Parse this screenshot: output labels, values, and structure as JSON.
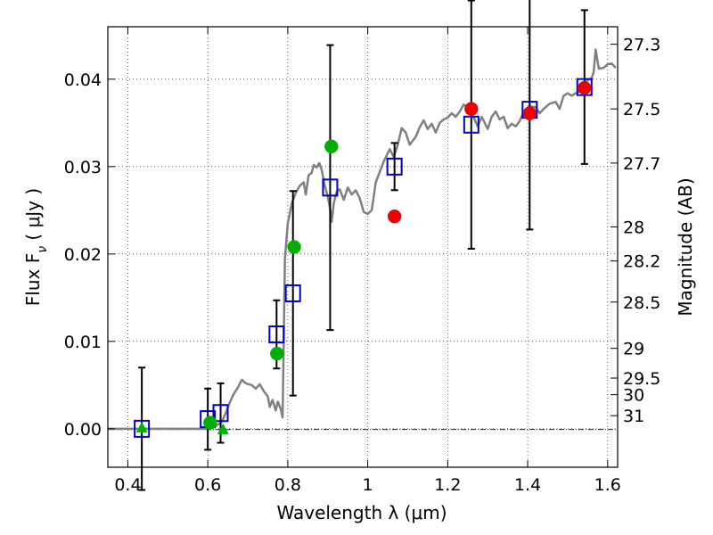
{
  "chart_data": {
    "type": "scatter",
    "xlabel": "Wavelength  λ (μm)",
    "ylabel": "Flux  F",
    "ylabel_subscript": "ν",
    "ylabel_unit": " ( μJy )",
    "y2label": "Magnitude (AB)",
    "xlim": [
      0.35,
      1.625
    ],
    "ylim": [
      -0.0044,
      0.046
    ],
    "grid": true,
    "x_ticks": [
      0.4,
      0.6,
      0.8,
      1.0,
      1.2,
      1.4,
      1.6
    ],
    "x_tick_labels": [
      "0.4",
      "0.6",
      "0.8",
      "1",
      "1.2",
      "1.4",
      "1.6"
    ],
    "y_ticks": [
      0.0,
      0.01,
      0.02,
      0.03,
      0.04
    ],
    "y_tick_labels": [
      "0.00",
      "0.01",
      "0.02",
      "0.03",
      "0.04"
    ],
    "right_axis_ticks": [
      {
        "label": "27.3",
        "flux": 0.044
      },
      {
        "label": "27.5",
        "flux": 0.0366
      },
      {
        "label": "27.7",
        "flux": 0.0304
      },
      {
        "label": "28",
        "flux": 0.0231
      },
      {
        "label": "28.2",
        "flux": 0.0192
      },
      {
        "label": "28.5",
        "flux": 0.0145
      },
      {
        "label": "29",
        "flux": 0.0092
      },
      {
        "label": "29.5",
        "flux": 0.0058
      },
      {
        "label": "30",
        "flux": 0.0039
      },
      {
        "label": "31",
        "flux": 0.0015
      }
    ],
    "series": [
      {
        "marker": "line",
        "color": "#808080",
        "points": [
          [
            0.35,
            0.0
          ],
          [
            0.43,
            0.0
          ],
          [
            0.5,
            0.0
          ],
          [
            0.56,
            0.0
          ],
          [
            0.6,
            0.0
          ],
          [
            0.62,
            0.0003
          ],
          [
            0.635,
            0.0008
          ],
          [
            0.645,
            0.0018
          ],
          [
            0.655,
            0.003
          ],
          [
            0.665,
            0.004
          ],
          [
            0.675,
            0.0047
          ],
          [
            0.685,
            0.0056
          ],
          [
            0.695,
            0.0052
          ],
          [
            0.71,
            0.005
          ],
          [
            0.72,
            0.0046
          ],
          [
            0.73,
            0.0051
          ],
          [
            0.74,
            0.0043
          ],
          [
            0.75,
            0.0037
          ],
          [
            0.755,
            0.0025
          ],
          [
            0.762,
            0.0033
          ],
          [
            0.77,
            0.0021
          ],
          [
            0.775,
            0.0031
          ],
          [
            0.782,
            0.0023
          ],
          [
            0.787,
            0.0013
          ],
          [
            0.793,
            0.0195
          ],
          [
            0.8,
            0.0235
          ],
          [
            0.81,
            0.0258
          ],
          [
            0.82,
            0.027
          ],
          [
            0.83,
            0.0278
          ],
          [
            0.84,
            0.0282
          ],
          [
            0.845,
            0.0268
          ],
          [
            0.852,
            0.029
          ],
          [
            0.86,
            0.0293
          ],
          [
            0.865,
            0.0302
          ],
          [
            0.872,
            0.0299
          ],
          [
            0.879,
            0.0304
          ],
          [
            0.885,
            0.0296
          ],
          [
            0.892,
            0.0279
          ],
          [
            0.9,
            0.0266
          ],
          [
            0.905,
            0.0254
          ],
          [
            0.91,
            0.0237
          ],
          [
            0.915,
            0.0258
          ],
          [
            0.922,
            0.0271
          ],
          [
            0.93,
            0.0274
          ],
          [
            0.94,
            0.0262
          ],
          [
            0.95,
            0.0276
          ],
          [
            0.96,
            0.0268
          ],
          [
            0.97,
            0.0273
          ],
          [
            0.98,
            0.0264
          ],
          [
            0.99,
            0.0248
          ],
          [
            1.0,
            0.0246
          ],
          [
            1.01,
            0.025
          ],
          [
            1.02,
            0.0282
          ],
          [
            1.04,
            0.0306
          ],
          [
            1.055,
            0.032
          ],
          [
            1.065,
            0.0311
          ],
          [
            1.075,
            0.0325
          ],
          [
            1.085,
            0.0344
          ],
          [
            1.095,
            0.0339
          ],
          [
            1.105,
            0.0325
          ],
          [
            1.12,
            0.0334
          ],
          [
            1.13,
            0.0345
          ],
          [
            1.14,
            0.0353
          ],
          [
            1.15,
            0.0343
          ],
          [
            1.16,
            0.0349
          ],
          [
            1.17,
            0.0339
          ],
          [
            1.18,
            0.035
          ],
          [
            1.19,
            0.0354
          ],
          [
            1.2,
            0.0356
          ],
          [
            1.21,
            0.0361
          ],
          [
            1.22,
            0.0357
          ],
          [
            1.23,
            0.0363
          ],
          [
            1.24,
            0.0371
          ],
          [
            1.25,
            0.0367
          ],
          [
            1.265,
            0.0356
          ],
          [
            1.275,
            0.0346
          ],
          [
            1.285,
            0.0357
          ],
          [
            1.3,
            0.0343
          ],
          [
            1.31,
            0.0357
          ],
          [
            1.32,
            0.0363
          ],
          [
            1.33,
            0.0354
          ],
          [
            1.34,
            0.0357
          ],
          [
            1.35,
            0.0344
          ],
          [
            1.36,
            0.0349
          ],
          [
            1.37,
            0.0346
          ],
          [
            1.38,
            0.0352
          ],
          [
            1.39,
            0.0363
          ],
          [
            1.405,
            0.0369
          ],
          [
            1.42,
            0.0368
          ],
          [
            1.43,
            0.0361
          ],
          [
            1.44,
            0.0366
          ],
          [
            1.455,
            0.0372
          ],
          [
            1.47,
            0.0374
          ],
          [
            1.48,
            0.0366
          ],
          [
            1.49,
            0.0381
          ],
          [
            1.5,
            0.0384
          ],
          [
            1.51,
            0.0381
          ],
          [
            1.52,
            0.0384
          ],
          [
            1.53,
            0.0386
          ],
          [
            1.54,
            0.0394
          ],
          [
            1.55,
            0.0399
          ],
          [
            1.56,
            0.0401
          ],
          [
            1.565,
            0.0408
          ],
          [
            1.57,
            0.0434
          ],
          [
            1.578,
            0.0412
          ],
          [
            1.59,
            0.0413
          ],
          [
            1.6,
            0.0417
          ],
          [
            1.61,
            0.0418
          ],
          [
            1.62,
            0.0413
          ]
        ]
      },
      {
        "marker": "open-square",
        "color": "#0000cc",
        "points": [
          {
            "x": 0.435,
            "y": 0.0,
            "yerr": 0.007
          },
          {
            "x": 0.6,
            "y": 0.0011,
            "yerr": 0.0035
          },
          {
            "x": 0.632,
            "y": 0.0018,
            "yerr": 0.0034
          },
          {
            "x": 0.772,
            "y": 0.0108,
            "yerr": 0.0039
          },
          {
            "x": 0.813,
            "y": 0.0155,
            "yerr": 0.0117
          },
          {
            "x": 0.906,
            "y": 0.0276,
            "yerr": 0.0163
          },
          {
            "x": 1.067,
            "y": 0.03,
            "yerr": 0.0027
          },
          {
            "x": 1.259,
            "y": 0.0348,
            "yerr": 0.0142
          },
          {
            "x": 1.405,
            "y": 0.0365,
            "yerr": 0.0137
          },
          {
            "x": 1.542,
            "y": 0.0391,
            "yerr": 0.0088
          }
        ]
      },
      {
        "marker": "circle",
        "color": "#00b000",
        "points": [
          [
            0.606,
            0.0007
          ],
          [
            0.773,
            0.0086
          ],
          [
            0.816,
            0.0208
          ],
          [
            0.909,
            0.0323
          ]
        ]
      },
      {
        "marker": "triangle",
        "color": "#00b000",
        "points": [
          [
            0.435,
            0.0002
          ],
          [
            0.638,
            0.0
          ]
        ]
      },
      {
        "marker": "circle",
        "color": "#ee0000",
        "points": [
          [
            1.067,
            0.0243
          ],
          [
            1.259,
            0.0366
          ],
          [
            1.405,
            0.0361
          ],
          [
            1.542,
            0.039
          ]
        ]
      }
    ]
  }
}
